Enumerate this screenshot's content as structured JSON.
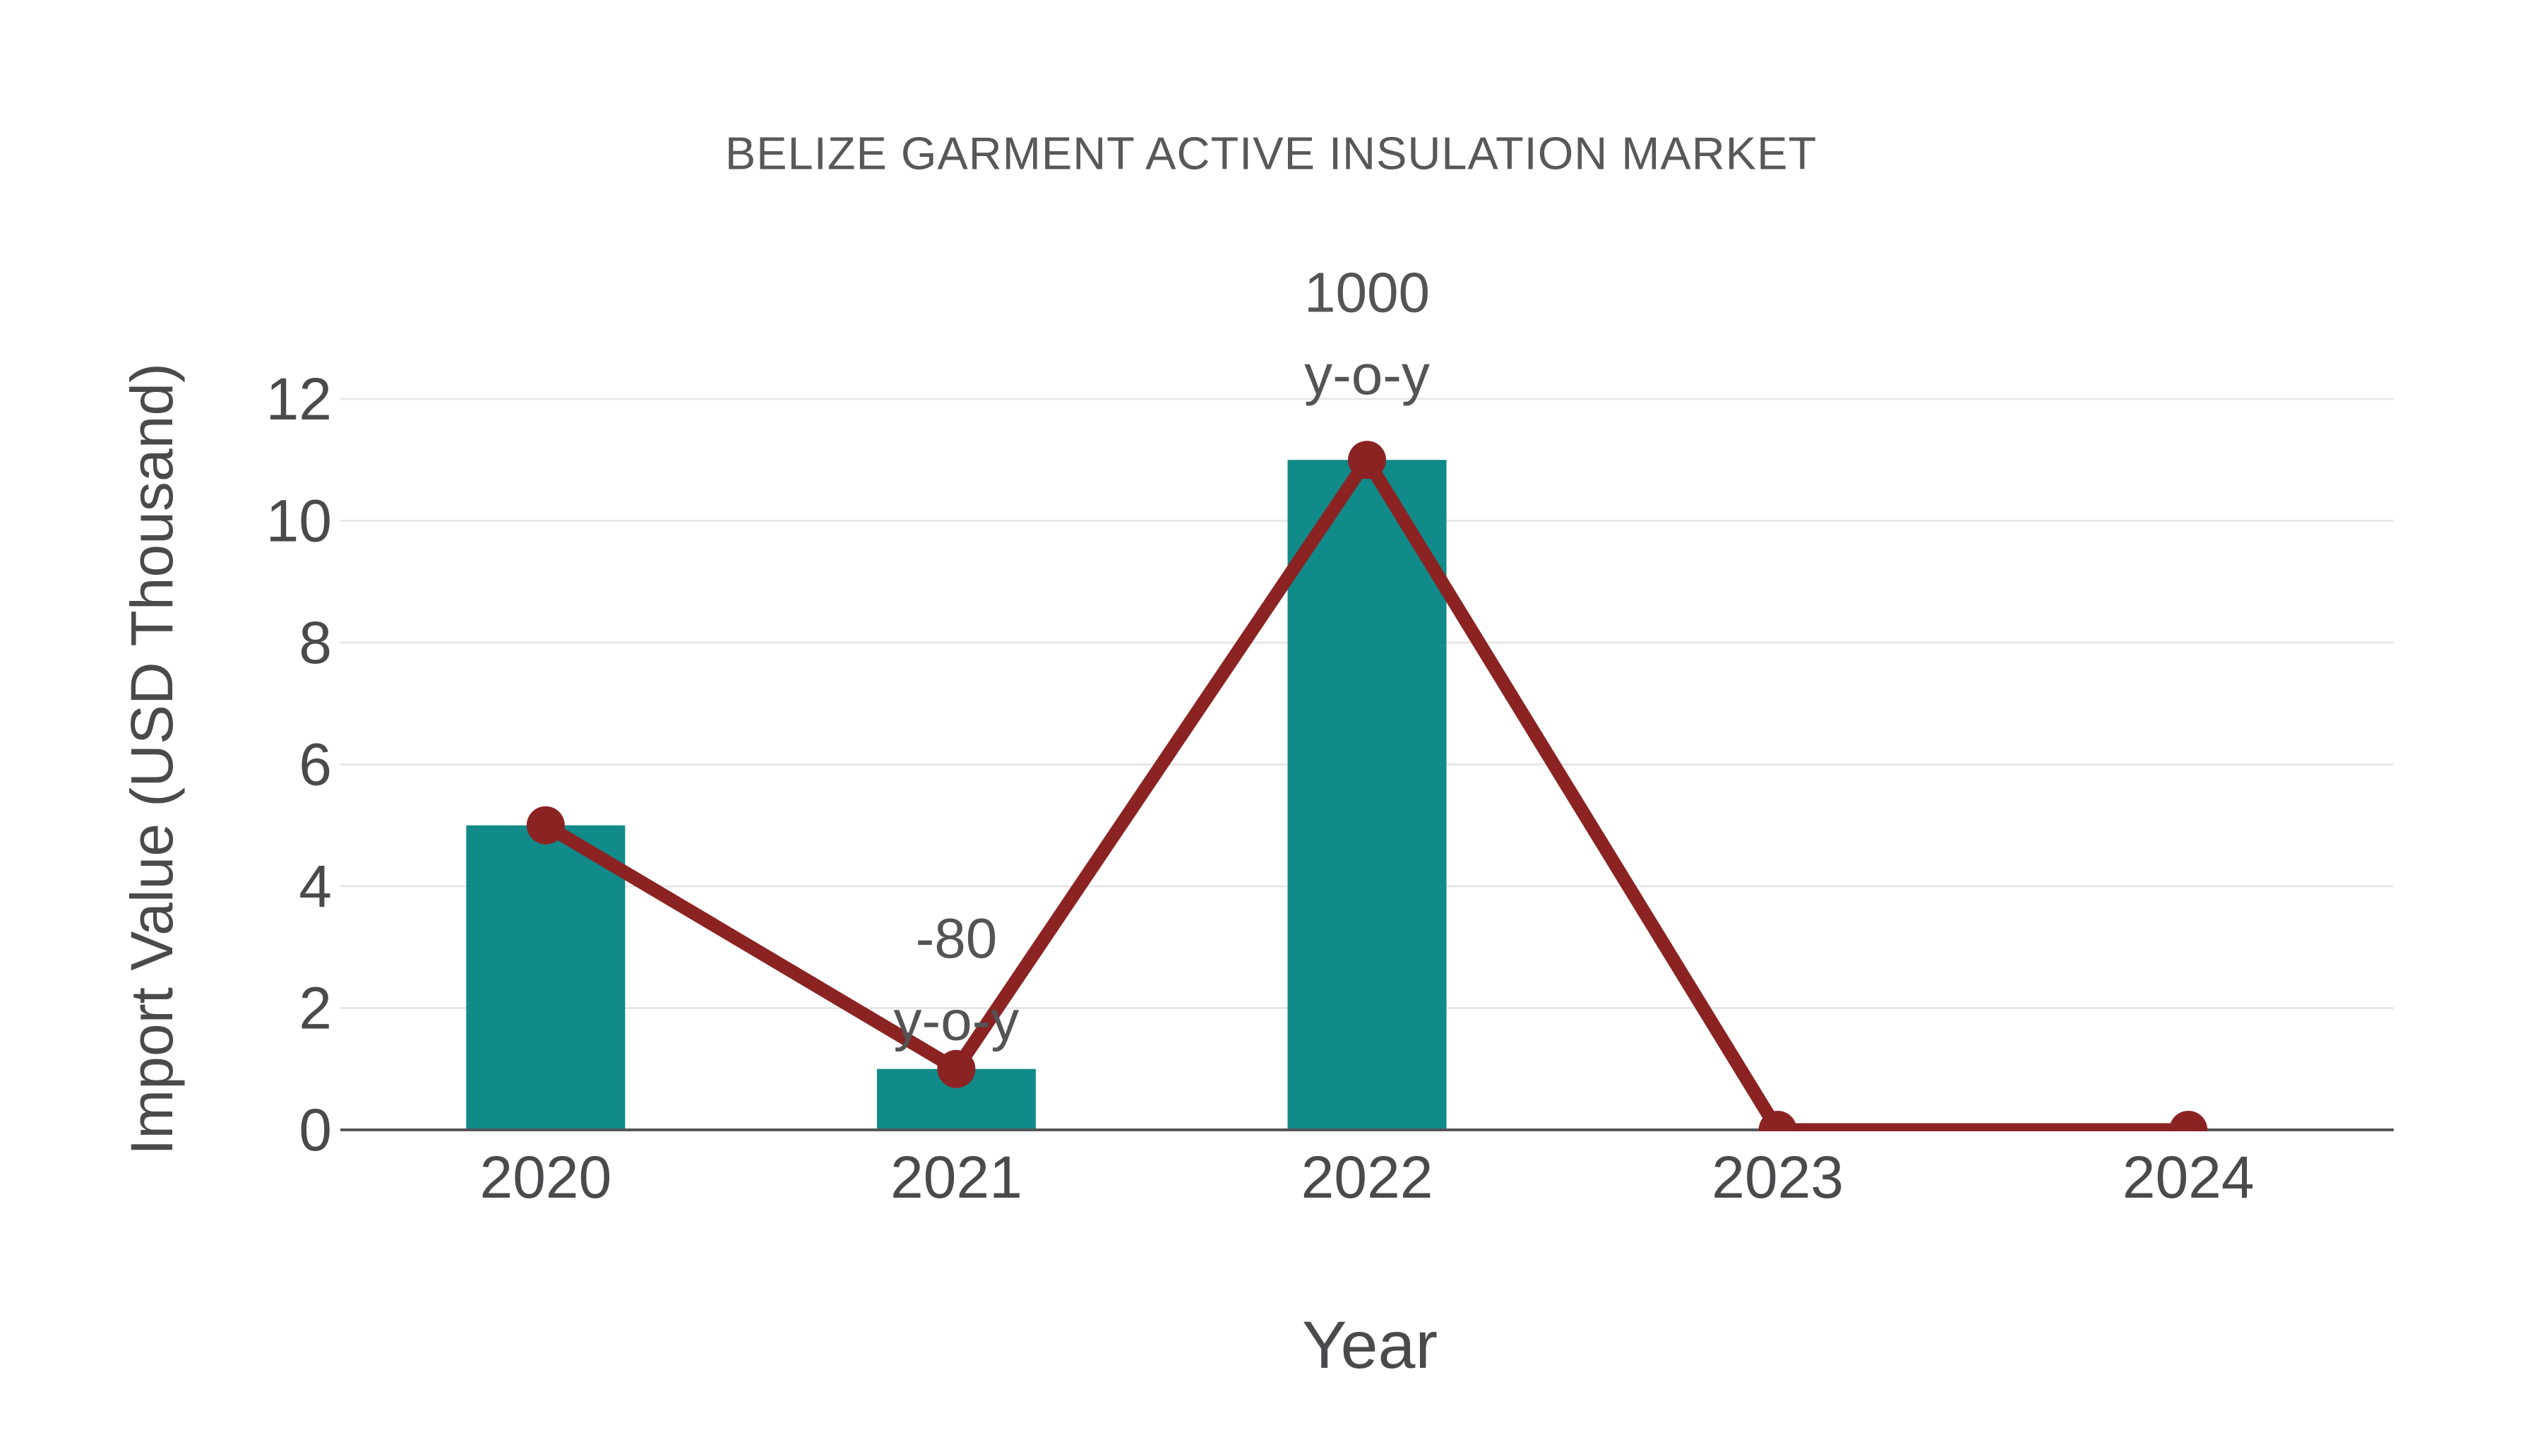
{
  "chart_data": {
    "type": "bar",
    "subtype": "bar+line",
    "title": "BELIZE GARMENT ACTIVE INSULATION MARKET",
    "xlabel": "Year",
    "ylabel": "Import Value (USD Thousand)",
    "categories": [
      "2020",
      "2021",
      "2022",
      "2023",
      "2024"
    ],
    "series": [
      {
        "name": "Import Value bars",
        "type": "bar",
        "values": [
          5,
          1,
          11,
          0,
          0
        ],
        "color": "#118A8A"
      },
      {
        "name": "Import Value line",
        "type": "line",
        "values": [
          5,
          1,
          11,
          0,
          0
        ],
        "color": "#8B2323"
      }
    ],
    "annotations": [
      {
        "category": "2021",
        "lines": [
          {
            "text": "-80",
            "y": 3.15
          },
          {
            "text": "y-o-y",
            "y": 1.8
          }
        ]
      },
      {
        "category": "2022",
        "lines": [
          {
            "text": "1000",
            "y": 13.75
          },
          {
            "text": "y-o-y",
            "y": 12.4
          }
        ]
      }
    ],
    "ylim": [
      0,
      12
    ],
    "yticks": [
      0,
      2,
      4,
      6,
      8,
      10,
      12
    ],
    "grid": true,
    "legend_position": "none",
    "colors": {
      "bar": "#118A8A",
      "line": "#8B2323",
      "marker": "#8B2323",
      "gridline": "#E7E7E7",
      "axis_line": "#55565A",
      "title_text": "#58585A",
      "tick_text": "#4A4A4C",
      "axis_title_text": "#4A4A4C",
      "annotation_text": "#545456",
      "background": "#FFFFFF"
    }
  }
}
